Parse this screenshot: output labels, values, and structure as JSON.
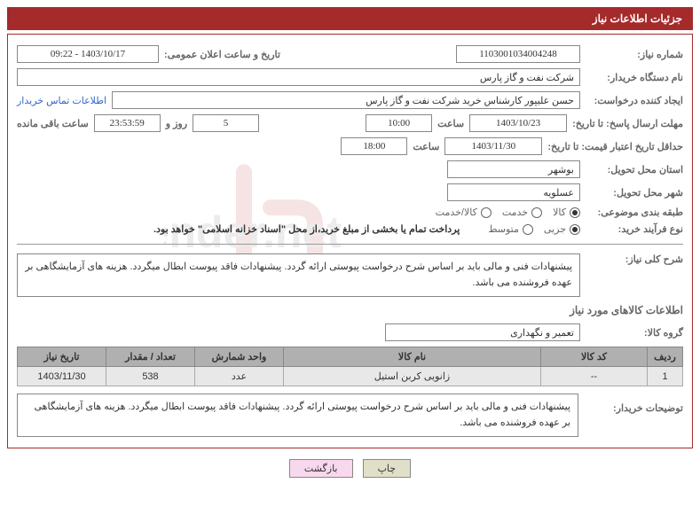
{
  "header_title": "جزئیات اطلاعات نیاز",
  "labels": {
    "req_number": "شماره نیاز:",
    "announce_datetime": "تاریخ و ساعت اعلان عمومی:",
    "buyer_org": "نام دستگاه خریدار:",
    "requester": "ایجاد کننده درخواست:",
    "contact_link": "اطلاعات تماس خریدار",
    "reply_deadline": "مهلت ارسال پاسخ: تا تاریخ:",
    "time_word": "ساعت",
    "days_and": "روز و",
    "remaining": "ساعت باقی مانده",
    "quote_validity": "حداقل تاریخ اعتبار قیمت: تا تاریخ:",
    "delivery_province": "استان محل تحویل:",
    "delivery_city": "شهر محل تحویل:",
    "category": "طبقه بندی موضوعی:",
    "purchase_type": "نوع فرآیند خرید:",
    "general_desc": "شرح کلی نیاز:",
    "items_info": "اطلاعات کالاهای مورد نیاز",
    "item_group": "گروه کالا:",
    "buyer_notes": "توضیحات خریدار:"
  },
  "fields": {
    "req_number": "1103001034004248",
    "announce_datetime": "1403/10/17 - 09:22",
    "buyer_org": "شرکت نفت و گاز پارس",
    "requester": "حسن علیپور کارشناس خرید شرکت نفت و گاز پارس",
    "reply_date": "1403/10/23",
    "reply_time": "10:00",
    "days_left": "5",
    "time_left": "23:53:59",
    "quote_date": "1403/11/30",
    "quote_time": "18:00",
    "province": "بوشهر",
    "city": "عسلویه",
    "item_group": "تعمیر و نگهداری",
    "payment_note": "پرداخت تمام یا بخشی از مبلغ خرید،از محل \"اسناد خزانه اسلامی\" خواهد بود.",
    "general_desc": "پیشنهادات فنی و مالی باید بر اساس شرح درخواست پیوستی ارائه گردد. پیشنهادات فاقد پیوست ابطال میگردد. هزینه های آزمایشگاهی بر عهده فروشنده می باشد.",
    "buyer_notes": "پیشنهادات فنی و مالی باید بر اساس شرح درخواست پیوستی ارائه گردد. پیشنهادات فاقد پیوست ابطال میگردد. هزینه های آزمایشگاهی بر عهده فروشنده می باشد."
  },
  "radios": {
    "category": {
      "options": [
        "کالا",
        "خدمت",
        "کالا/خدمت"
      ],
      "selected": 0
    },
    "purchase": {
      "options": [
        "جزیی",
        "متوسط"
      ],
      "selected": 0
    }
  },
  "table": {
    "headers": [
      "ردیف",
      "کد کالا",
      "نام کالا",
      "واحد شمارش",
      "تعداد / مقدار",
      "تاریخ نیاز"
    ],
    "rows": [
      [
        "1",
        "--",
        "زانویی کربن استیل",
        "عدد",
        "538",
        "1403/11/30"
      ]
    ]
  },
  "buttons": {
    "print": "چاپ",
    "back": "بازگشت"
  },
  "colors": {
    "header_bg": "#a52a2a",
    "border": "#a52a2a",
    "label": "#666666",
    "th_bg": "#b0b0b0",
    "td_bg": "#e8e8e8"
  }
}
